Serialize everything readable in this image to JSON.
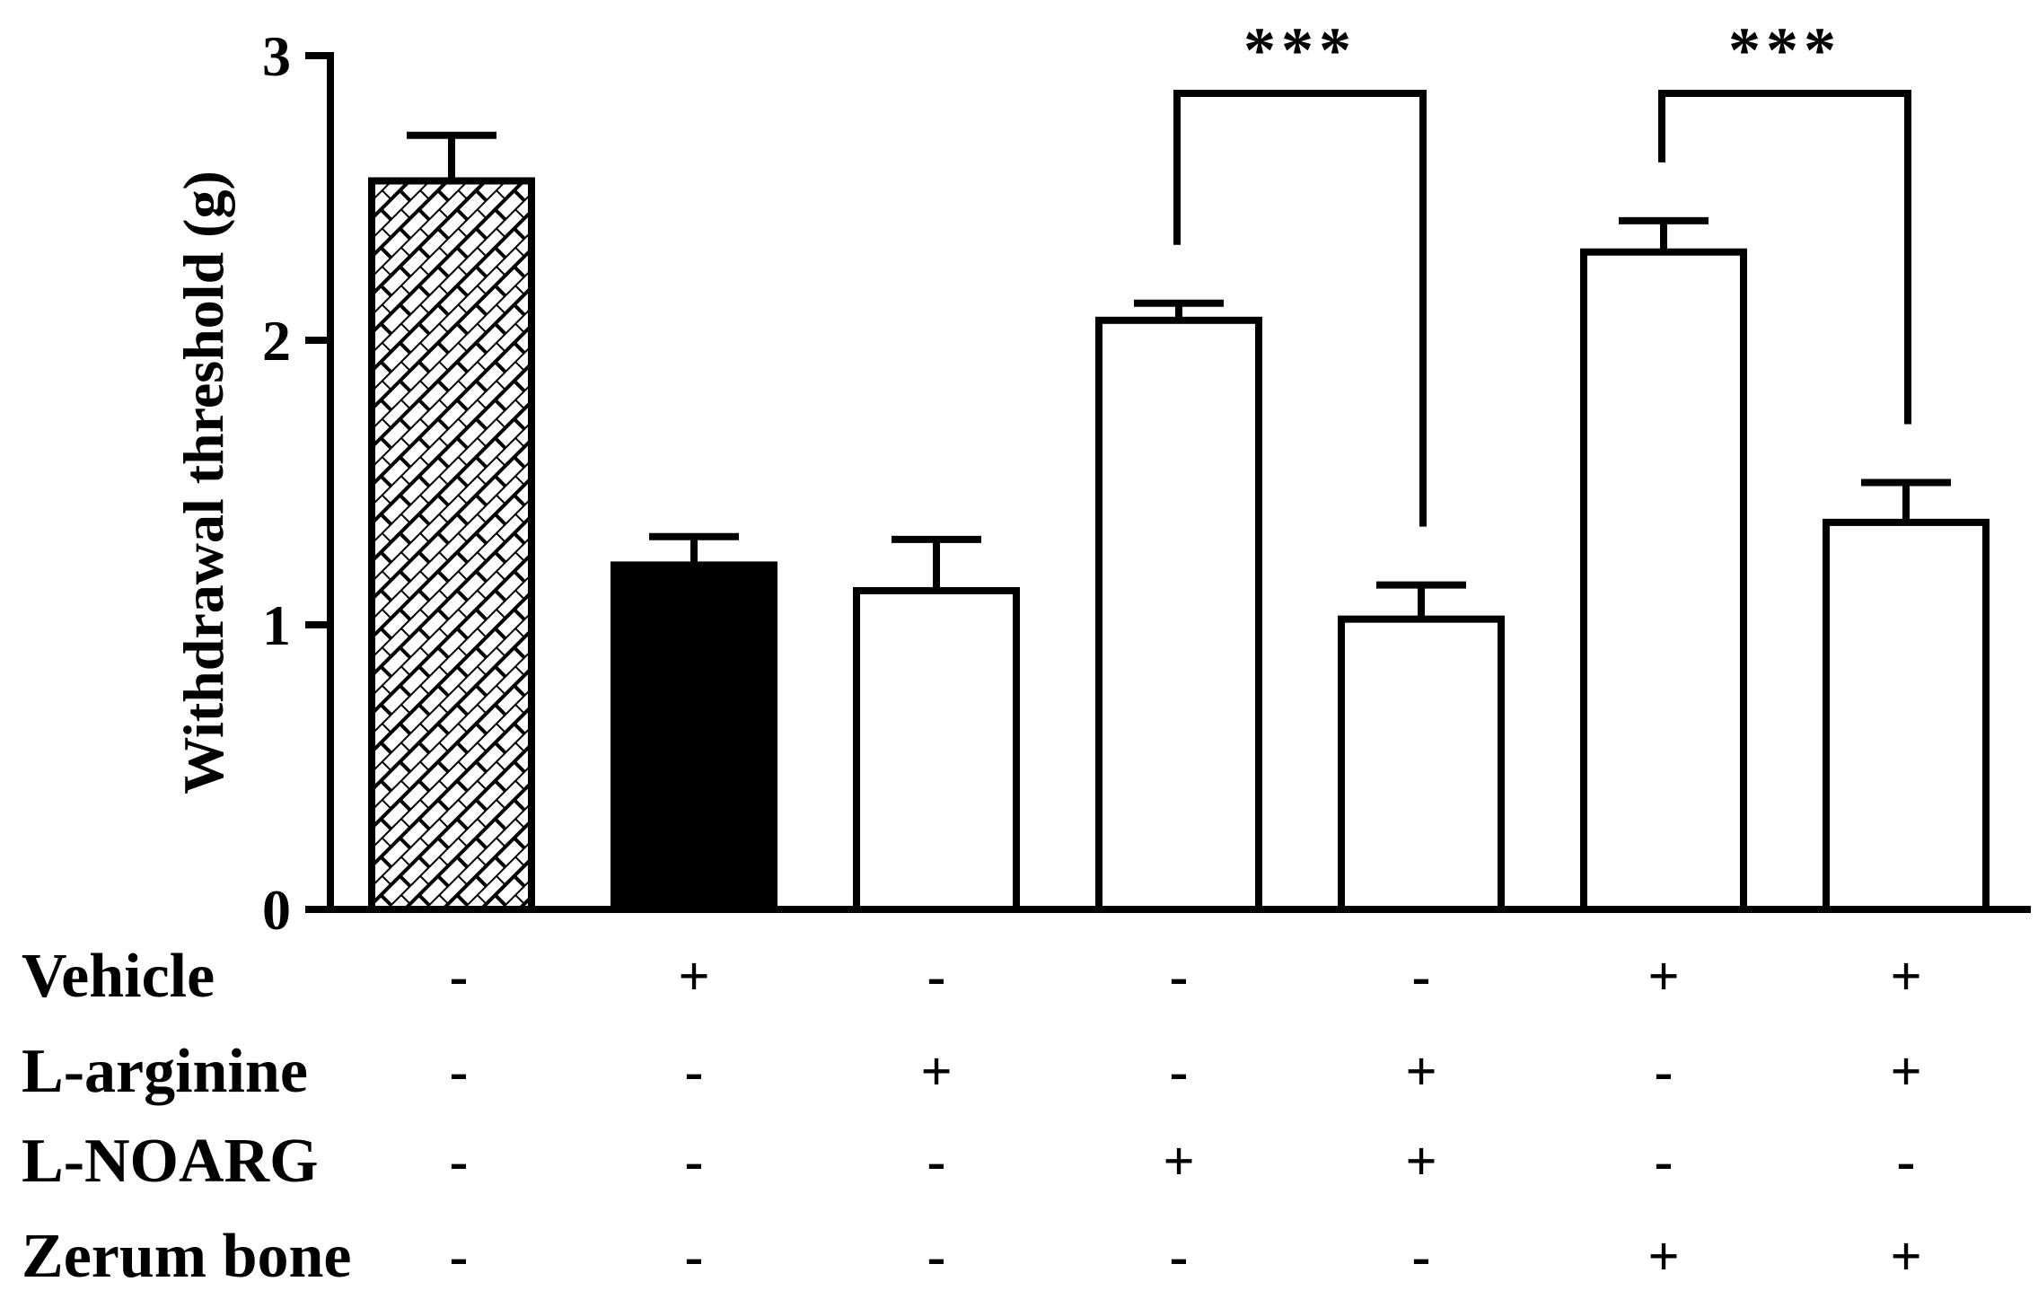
{
  "chart_data": {
    "type": "bar",
    "ylabel": "Withdrawal threshold (g)",
    "ylim": [
      0,
      3
    ],
    "yticks": [
      "0",
      "1",
      "2",
      "3"
    ],
    "grid": false,
    "bars": [
      {
        "value": 2.56,
        "error": 0.16,
        "fill": "hatched"
      },
      {
        "value": 1.21,
        "error": 0.1,
        "fill": "#000000"
      },
      {
        "value": 1.12,
        "error": 0.18,
        "fill": "#ffffff"
      },
      {
        "value": 2.07,
        "error": 0.06,
        "fill": "#ffffff"
      },
      {
        "value": 1.02,
        "error": 0.12,
        "fill": "#ffffff"
      },
      {
        "value": 2.31,
        "error": 0.11,
        "fill": "#ffffff"
      },
      {
        "value": 1.36,
        "error": 0.14,
        "fill": "#ffffff"
      }
    ],
    "treatments": [
      {
        "label": "Vehicle",
        "signs": [
          "-",
          "+",
          "-",
          "-",
          "-",
          "+",
          "+"
        ]
      },
      {
        "label": "L-arginine",
        "signs": [
          "-",
          "-",
          "+",
          "-",
          "+",
          "-",
          "+"
        ]
      },
      {
        "label": "L-NOARG",
        "signs": [
          "-",
          "-",
          "-",
          "+",
          "+",
          "-",
          "-"
        ]
      },
      {
        "label": "Zerum bone",
        "signs": [
          "-",
          "-",
          "-",
          "-",
          "-",
          "+",
          "+"
        ]
      }
    ],
    "significance": [
      {
        "from": 3,
        "to": 4,
        "label": "***"
      },
      {
        "from": 5,
        "to": 6,
        "label": "***"
      }
    ]
  }
}
